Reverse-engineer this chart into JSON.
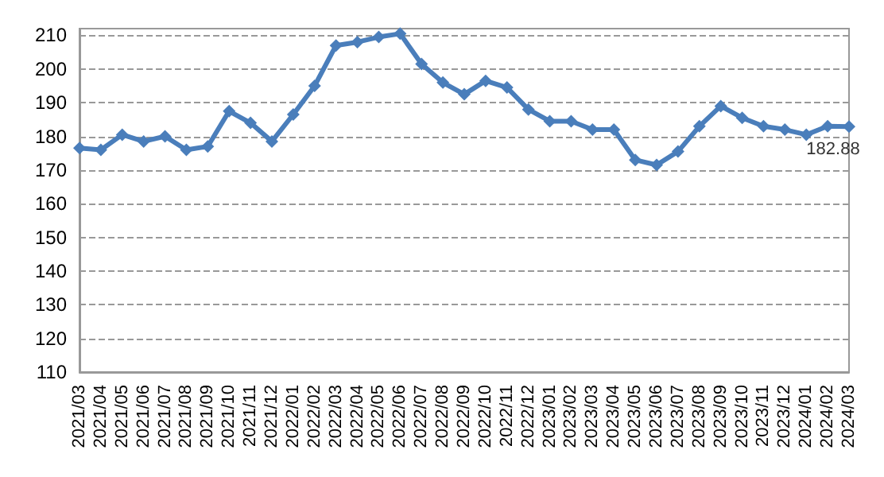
{
  "chart_data": {
    "type": "line",
    "categories": [
      "2021/03",
      "2021/04",
      "2021/05",
      "2021/06",
      "2021/07",
      "2021/08",
      "2021/09",
      "2021/10",
      "2021/11",
      "2021/12",
      "2022/01",
      "2022/02",
      "2022/03",
      "2022/04",
      "2022/05",
      "2022/06",
      "2022/07",
      "2022/08",
      "2022/09",
      "2022/10",
      "2022/11",
      "2022/12",
      "2023/01",
      "2023/02",
      "2023/03",
      "2023/04",
      "2023/05",
      "2023/06",
      "2023/07",
      "2023/08",
      "2023/09",
      "2023/10",
      "2023/11",
      "2023/12",
      "2024/01",
      "2024/02",
      "2024/03"
    ],
    "series": [
      {
        "color": "#4a7ebb",
        "values": [
          176.5,
          176,
          180.5,
          178.5,
          180,
          176,
          177,
          187.5,
          184,
          178.5,
          186.5,
          195,
          207,
          208,
          209.5,
          210.5,
          201.5,
          196,
          192.5,
          196.5,
          194.5,
          188,
          184.5,
          184.5,
          182,
          182,
          173,
          171.5,
          175.5,
          183,
          189,
          185.5,
          183,
          182,
          180.5,
          183,
          182.88
        ],
        "value_labels": [
          null,
          null,
          null,
          null,
          null,
          null,
          null,
          null,
          null,
          null,
          null,
          null,
          null,
          null,
          null,
          null,
          null,
          null,
          null,
          null,
          null,
          null,
          null,
          null,
          null,
          null,
          null,
          null,
          null,
          null,
          null,
          null,
          null,
          null,
          null,
          null,
          "182.88"
        ]
      }
    ],
    "ylim": [
      110,
      212
    ],
    "yticks": [
      110,
      120,
      130,
      140,
      150,
      160,
      170,
      180,
      190,
      200,
      210
    ],
    "grid": "y",
    "marker": "diamond",
    "line_style": "solid"
  }
}
